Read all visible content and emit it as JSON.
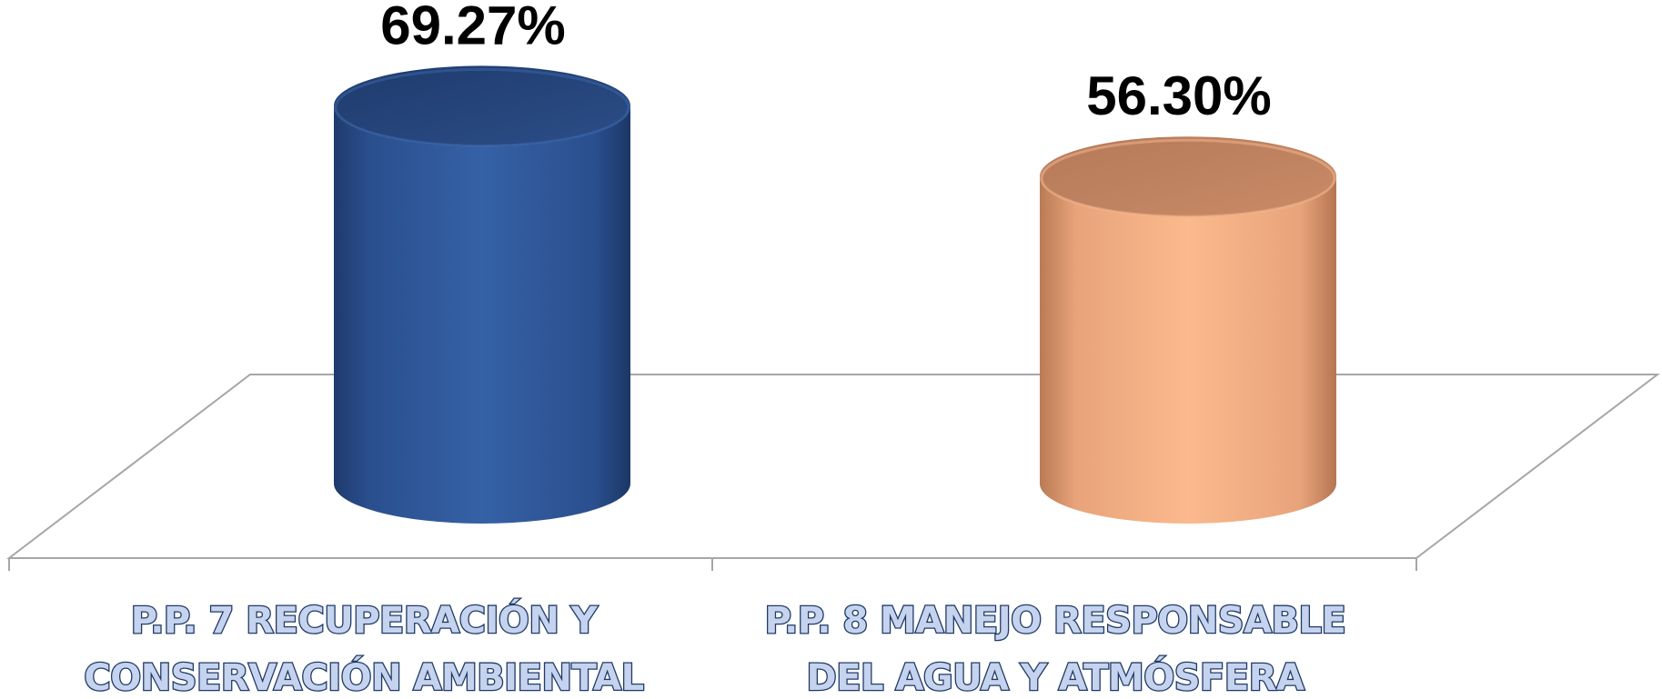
{
  "chart_data": {
    "type": "bar",
    "style": "3d-cylinder",
    "title": "",
    "xlabel": "",
    "ylabel": "",
    "categories": [
      [
        "P.P. 7 RECUPERACIÓN Y",
        "CONSERVACIÓN AMBIENTAL"
      ],
      [
        "P.P. 8 MANEJO RESPONSABLE",
        "DEL AGUA Y ATMÓSFERA"
      ]
    ],
    "values": [
      69.27,
      56.3
    ],
    "value_labels": [
      "69.27%",
      "56.30%"
    ],
    "colors": [
      "#2e5597",
      "#f9b58a"
    ],
    "ylim": [
      0,
      100
    ],
    "grid": false,
    "legend": "none"
  }
}
